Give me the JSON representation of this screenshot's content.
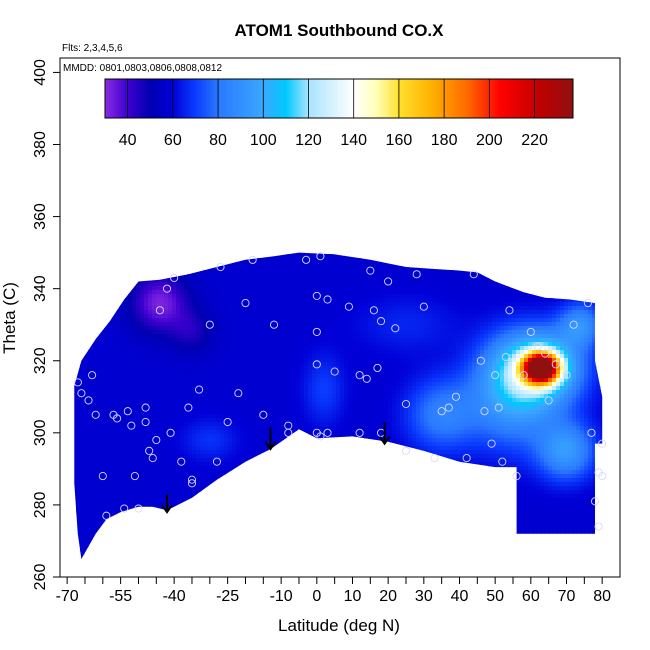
{
  "chart_data": {
    "type": "heatmap",
    "title": "ATOM1 Southbound CO.X",
    "xlabel": "Latitude (deg N)",
    "ylabel": "Theta (C)",
    "flights_note": "Flts: 2,3,4,5,6",
    "dates_note": "MMDD: 0801,0803,0806,0808,0812",
    "xlim": [
      -72,
      85
    ],
    "ylim": [
      260,
      404
    ],
    "x_ticks": [
      -70,
      -55,
      -40,
      -25,
      -10,
      0,
      10,
      20,
      30,
      40,
      50,
      60,
      70,
      80
    ],
    "x_tick_labels": [
      "-70",
      "-55",
      "-40",
      "-25",
      "-10",
      "0",
      "10",
      "20",
      "30",
      "40",
      "50",
      "60",
      "70",
      "80"
    ],
    "x_minor_ticks": [
      -65,
      -60,
      -50,
      -45,
      -35,
      -30,
      -20,
      -15,
      -5,
      5,
      15,
      25,
      35,
      45,
      55,
      65,
      75
    ],
    "y_ticks": [
      260,
      280,
      300,
      320,
      340,
      360,
      380,
      400
    ],
    "y_tick_labels": [
      "260",
      "280",
      "300",
      "320",
      "340",
      "360",
      "380",
      "400"
    ],
    "colorbar": {
      "min": 30,
      "max": 237,
      "ticks": [
        40,
        60,
        80,
        100,
        120,
        140,
        160,
        180,
        200,
        220
      ],
      "tick_labels": [
        "40",
        "60",
        "80",
        "100",
        "120",
        "140",
        "160",
        "180",
        "200",
        "220"
      ],
      "colors": [
        {
          "v": 30,
          "c": "#8a2be2"
        },
        {
          "v": 40,
          "c": "#3d00d0"
        },
        {
          "v": 50,
          "c": "#0000b0"
        },
        {
          "v": 60,
          "c": "#0000d8"
        },
        {
          "v": 70,
          "c": "#0a3cff"
        },
        {
          "v": 80,
          "c": "#2a78ff"
        },
        {
          "v": 100,
          "c": "#3aa8ff"
        },
        {
          "v": 110,
          "c": "#00c8ff"
        },
        {
          "v": 120,
          "c": "#a8e4ff"
        },
        {
          "v": 140,
          "c": "#ffffff"
        },
        {
          "v": 150,
          "c": "#ffffb8"
        },
        {
          "v": 160,
          "c": "#ffe030"
        },
        {
          "v": 175,
          "c": "#ffb000"
        },
        {
          "v": 190,
          "c": "#ff6a00"
        },
        {
          "v": 205,
          "c": "#ff0000"
        },
        {
          "v": 222,
          "c": "#c00000"
        },
        {
          "v": 237,
          "c": "#901010"
        }
      ]
    },
    "boundary": [
      [
        -66,
        265
      ],
      [
        -62,
        272
      ],
      [
        -59,
        276
      ],
      [
        -55,
        278
      ],
      [
        -50,
        279.5
      ],
      [
        -46,
        279.5
      ],
      [
        -42,
        278.5
      ],
      [
        -35,
        282
      ],
      [
        -28,
        287
      ],
      [
        -20,
        292
      ],
      [
        -13,
        295.5
      ],
      [
        -5,
        301
      ],
      [
        0,
        298.5
      ],
      [
        10,
        299
      ],
      [
        20,
        297.5
      ],
      [
        30,
        295
      ],
      [
        40,
        292
      ],
      [
        50,
        290.5
      ],
      [
        56,
        290.5
      ],
      [
        56,
        272
      ],
      [
        78,
        272
      ],
      [
        78,
        297
      ],
      [
        80,
        297
      ],
      [
        80,
        300
      ],
      [
        80,
        310
      ],
      [
        78,
        320
      ],
      [
        78,
        336
      ],
      [
        71,
        337
      ],
      [
        64,
        337.5
      ],
      [
        58,
        339
      ],
      [
        50,
        342
      ],
      [
        45,
        344.5
      ],
      [
        40,
        345
      ],
      [
        32,
        345.5
      ],
      [
        25,
        346
      ],
      [
        15,
        348
      ],
      [
        5,
        349.5
      ],
      [
        -5,
        350
      ],
      [
        -12,
        349
      ],
      [
        -20,
        348
      ],
      [
        -28,
        346
      ],
      [
        -36,
        344
      ],
      [
        -44,
        342.5
      ],
      [
        -50,
        342
      ],
      [
        -54,
        337
      ],
      [
        -58,
        331
      ],
      [
        -62,
        326
      ],
      [
        -66,
        320
      ],
      [
        -68,
        313
      ],
      [
        -68,
        286
      ],
      [
        -67,
        272
      ],
      [
        -66,
        265
      ]
    ],
    "background_value": 58,
    "anomalies": [
      {
        "x": -44,
        "y": 336,
        "sx": 8,
        "sy": 8,
        "amp": -26
      },
      {
        "x": -35,
        "y": 328,
        "sx": 6,
        "sy": 6,
        "amp": -12
      },
      {
        "x": 63,
        "y": 318,
        "sx": 5,
        "sy": 4.2,
        "amp": 165
      },
      {
        "x": 62,
        "y": 318,
        "sx": 12,
        "sy": 10,
        "amp": 60
      },
      {
        "x": 55,
        "y": 310,
        "sx": 12,
        "sy": 14,
        "amp": 34
      },
      {
        "x": 35,
        "y": 305,
        "sx": 10,
        "sy": 10,
        "amp": 25
      },
      {
        "x": 70,
        "y": 295,
        "sx": 8,
        "sy": 8,
        "amp": 35
      },
      {
        "x": 2,
        "y": 312,
        "sx": 6,
        "sy": 10,
        "amp": 12
      },
      {
        "x": -30,
        "y": 298,
        "sx": 8,
        "sy": 6,
        "amp": 10
      },
      {
        "x": 74,
        "y": 330,
        "sx": 6,
        "sy": 6,
        "amp": 30
      },
      {
        "x": 25,
        "y": 330,
        "sx": 14,
        "sy": 8,
        "amp": 8
      }
    ],
    "observations": [
      [
        -67,
        314
      ],
      [
        -66,
        311
      ],
      [
        -64,
        309
      ],
      [
        -63,
        316
      ],
      [
        -62,
        305
      ],
      [
        -60,
        288
      ],
      [
        -59,
        277
      ],
      [
        -57,
        305
      ],
      [
        -56,
        304
      ],
      [
        -54,
        279
      ],
      [
        -53,
        306
      ],
      [
        -52,
        302
      ],
      [
        -51,
        288
      ],
      [
        -50,
        279
      ],
      [
        -48,
        307
      ],
      [
        -48,
        303
      ],
      [
        -47,
        295
      ],
      [
        -46,
        293
      ],
      [
        -45,
        298
      ],
      [
        -44,
        334
      ],
      [
        -42,
        340
      ],
      [
        -41,
        300
      ],
      [
        -40,
        343
      ],
      [
        -38,
        292
      ],
      [
        -36,
        307
      ],
      [
        -35,
        287
      ],
      [
        -35,
        286
      ],
      [
        -33,
        312
      ],
      [
        -30,
        330
      ],
      [
        -28,
        292
      ],
      [
        -27,
        346
      ],
      [
        -25,
        303
      ],
      [
        -22,
        311
      ],
      [
        -20,
        336
      ],
      [
        -18,
        348
      ],
      [
        -15,
        305
      ],
      [
        -12,
        330
      ],
      [
        -8,
        300
      ],
      [
        -8,
        302
      ],
      [
        -3,
        348
      ],
      [
        0,
        338
      ],
      [
        0,
        328
      ],
      [
        0,
        319
      ],
      [
        0,
        300
      ],
      [
        1,
        299
      ],
      [
        1,
        349
      ],
      [
        3,
        337
      ],
      [
        3,
        300
      ],
      [
        5,
        317
      ],
      [
        9,
        335
      ],
      [
        12,
        300
      ],
      [
        12,
        316
      ],
      [
        14,
        315
      ],
      [
        15,
        345
      ],
      [
        16,
        334
      ],
      [
        17,
        318
      ],
      [
        18,
        331
      ],
      [
        18,
        300
      ],
      [
        20,
        342
      ],
      [
        22,
        329
      ],
      [
        25,
        308
      ],
      [
        25,
        295
      ],
      [
        28,
        344
      ],
      [
        30,
        335
      ],
      [
        33,
        293
      ],
      [
        35,
        306
      ],
      [
        37,
        307
      ],
      [
        39,
        310
      ],
      [
        42,
        293
      ],
      [
        44,
        344
      ],
      [
        46,
        320
      ],
      [
        47,
        306
      ],
      [
        49,
        297
      ],
      [
        50,
        316
      ],
      [
        51,
        307
      ],
      [
        52,
        292
      ],
      [
        53,
        321
      ],
      [
        54,
        334
      ],
      [
        56,
        288
      ],
      [
        58,
        316
      ],
      [
        60,
        328
      ],
      [
        62,
        324
      ],
      [
        64,
        322
      ],
      [
        65,
        309
      ],
      [
        67,
        319
      ],
      [
        70,
        316
      ],
      [
        72,
        330
      ],
      [
        76,
        336
      ],
      [
        77,
        300
      ],
      [
        78,
        281
      ],
      [
        79,
        289
      ],
      [
        79,
        274
      ],
      [
        80,
        297
      ],
      [
        80,
        288
      ]
    ],
    "arrows": [
      {
        "x": -42,
        "y_top": 283,
        "y_tip": 278
      },
      {
        "x": -13,
        "y_top": 301.5,
        "y_tip": 295.5
      },
      {
        "x": 19,
        "y_top": 303,
        "y_tip": 297
      }
    ],
    "grid": false
  }
}
